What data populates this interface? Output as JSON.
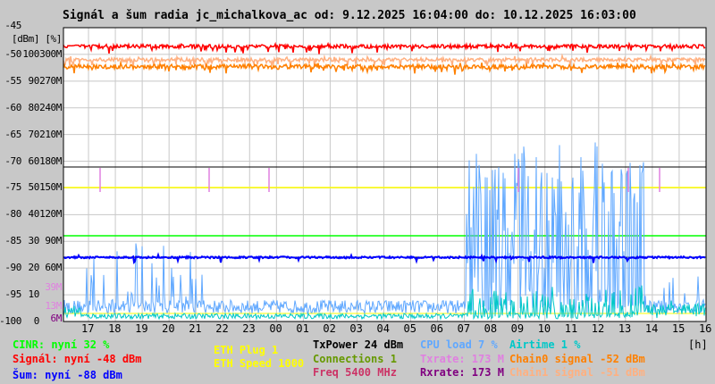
{
  "chart_data": {
    "type": "line",
    "title": "Signál a šum radia jc_michalkova_ac od: 9.12.2025 16:04:00 do: 10.12.2025 16:03:00",
    "ylabel": "[dBm] [%]",
    "xlabel": "[h]",
    "ylim_dbm": [
      -100,
      -45
    ],
    "y_ticks": [
      "-45",
      "-50 100 300M",
      "-55 90 270M",
      "-60 80 240M",
      "-65 70 210M",
      "-70 60 180M",
      "-75 50 150M",
      "-80 40 120M",
      "-85 30 90M",
      "-90 20 60M",
      "-95 10",
      "-100 0"
    ],
    "x_ticks": [
      "17",
      "18",
      "19",
      "20",
      "21",
      "22",
      "23",
      "00",
      "01",
      "02",
      "03",
      "04",
      "05",
      "06",
      "07",
      "08",
      "09",
      "10",
      "11",
      "12",
      "13",
      "14",
      "15",
      "16"
    ],
    "rate_marks": [
      "39M",
      "13M",
      "6M"
    ],
    "grid": true,
    "series": [
      {
        "name": "Signál",
        "color": "#ff0000",
        "level_dbm": -48
      },
      {
        "name": "Chain0 signal",
        "color": "#ff8000",
        "level_dbm": -52
      },
      {
        "name": "Chain1 signal",
        "color": "#ffb080",
        "level_dbm": -51
      },
      {
        "name": "Šum",
        "color": "#0000ff",
        "level_dbm": -88
      },
      {
        "name": "CINR",
        "color": "#00ff00",
        "level_pct": 32
      },
      {
        "name": "ETH Speed",
        "color": "#ffff00",
        "level_pct": 50
      },
      {
        "name": "Rxrate",
        "color": "#800080",
        "level_pct": 58
      },
      {
        "name": "TxPower",
        "color": "#000000",
        "level_pct": 24
      },
      {
        "name": "CPU load",
        "color": "#60a8ff",
        "level_pct": 7
      },
      {
        "name": "Airtime",
        "color": "#00c8c8",
        "level_pct": 1
      }
    ]
  },
  "legend": {
    "cinr": "CINR: nyní 32 %",
    "signal": "Signál: nyní -48 dBm",
    "noise": "Šum: nyní -88 dBm",
    "eth_plug": "ETH Plug 1",
    "eth_speed": "ETH Speed 1000",
    "txpower": "TxPower 24 dBm",
    "connections": "Connections 1",
    "freq": "Freq 5400 MHz",
    "cpu": "CPU load 7 %",
    "txrate": "Txrate: 173 M",
    "rxrate": "Rxrate: 173 M",
    "airtime": "Airtime 1 %",
    "chain0": "Chain0 signal -52 dBm",
    "chain1": "Chain1 signal -51 dBm"
  },
  "colors": {
    "cinr": "#00ff00",
    "signal": "#ff0000",
    "noise": "#0000ff",
    "eth": "#ffff00",
    "txpower": "#000000",
    "connections": "#669900",
    "freq": "#cc3366",
    "cpu": "#60a8ff",
    "txrate": "#e080e0",
    "rxrate": "#800080",
    "airtime": "#00c8c8",
    "chain0": "#ff8000",
    "chain1": "#ffb080"
  }
}
